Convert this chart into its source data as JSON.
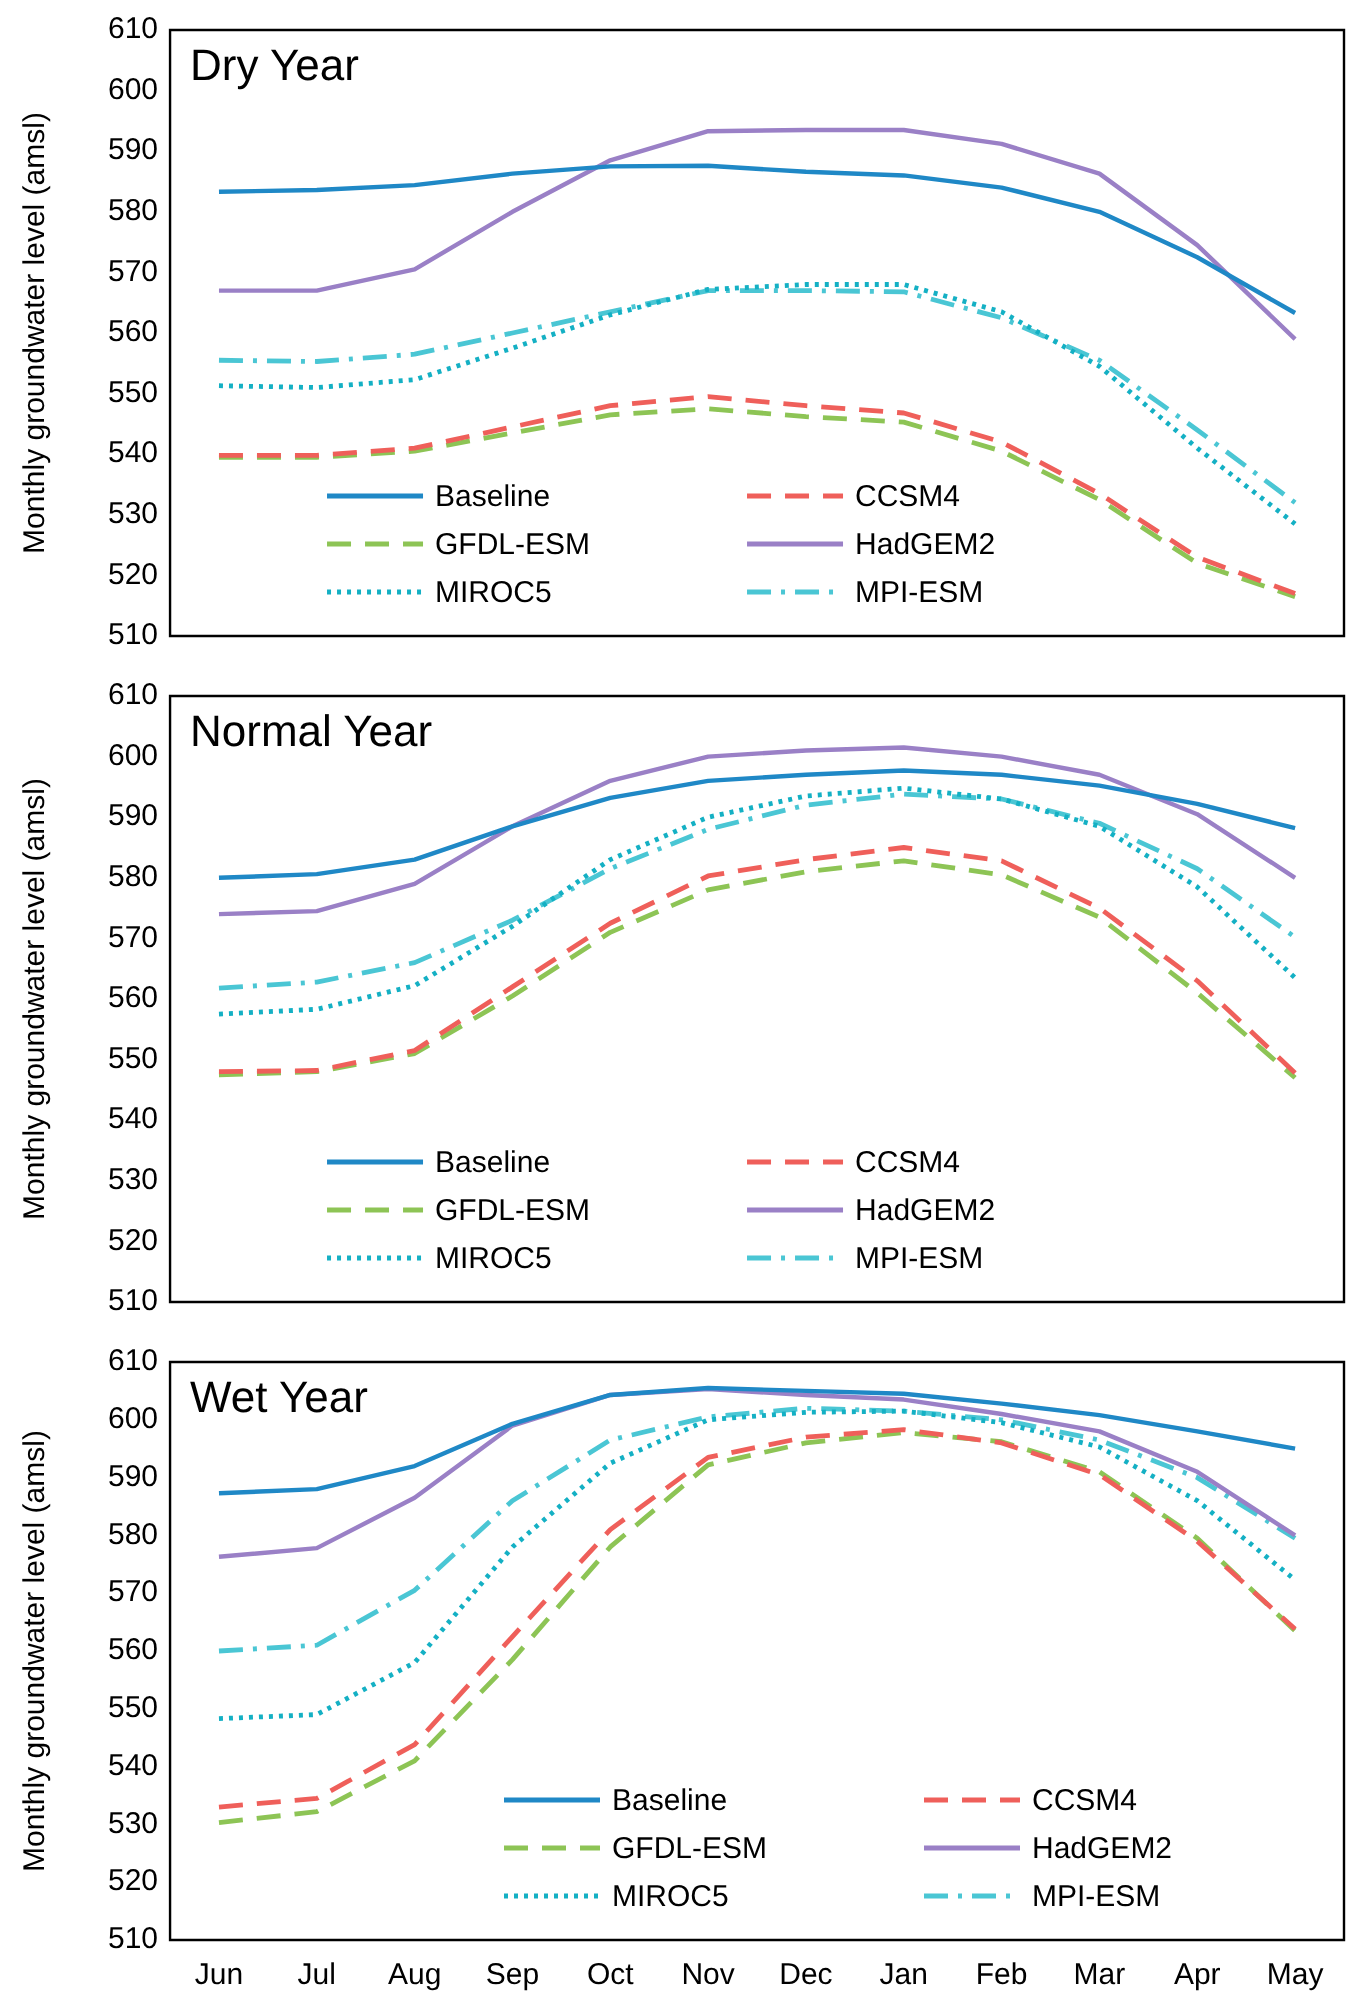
{
  "chart_data": [
    {
      "type": "line",
      "title": "Dry Year",
      "ylabel": "Monthly groundwater level (amsl)",
      "categories": [
        null,
        null,
        null,
        null,
        null,
        null,
        null,
        null,
        null,
        null,
        null,
        null
      ],
      "ylim": [
        510,
        610
      ],
      "yticks": [
        510,
        520,
        530,
        540,
        550,
        560,
        570,
        580,
        590,
        600,
        610
      ],
      "legend": "bottom",
      "tick_labels": "y",
      "marker": "none",
      "series": [
        {
          "name": "Baseline",
          "color": "#1f88c6",
          "line_style": "solid",
          "values": [
            583.3,
            583.6,
            584.4,
            586.3,
            587.5,
            587.6,
            586.6,
            586.0,
            584.0,
            580.0,
            572.5,
            563.3
          ]
        },
        {
          "name": "CCSM4",
          "color": "#ef5f5a",
          "line_style": "dashed",
          "values": [
            539.8,
            539.8,
            541,
            544.5,
            548,
            549.5,
            548,
            546.8,
            542,
            533.5,
            523,
            517
          ]
        },
        {
          "name": "GFDL-ESM",
          "color": "#8dc455",
          "line_style": "dashed",
          "values": [
            539.5,
            539.5,
            540.5,
            543.5,
            546.5,
            547.5,
            546.2,
            545.3,
            540.5,
            532.5,
            522,
            516.5
          ]
        },
        {
          "name": "HadGEM2",
          "color": "#9a80c6",
          "line_style": "solid",
          "values": [
            567,
            567,
            570.5,
            580,
            588.5,
            593.3,
            593.5,
            593.5,
            591.2,
            586.3,
            574.5,
            559
          ]
        },
        {
          "name": "MIROC5",
          "color": "#14b0c4",
          "line_style": "dotted",
          "values": [
            551.3,
            551,
            552.3,
            557.5,
            563,
            567.2,
            568,
            568,
            563.5,
            554.5,
            541,
            528.5
          ]
        },
        {
          "name": "MPI-ESM",
          "color": "#4ac6d4",
          "line_style": "dashdot",
          "values": [
            555.5,
            555.3,
            556.5,
            560,
            563.5,
            567,
            567,
            566.8,
            562.5,
            555.5,
            544,
            532
          ]
        }
      ]
    },
    {
      "type": "line",
      "title": "Normal Year",
      "ylabel": "Monthly groundwater level (amsl)",
      "categories": [
        null,
        null,
        null,
        null,
        null,
        null,
        null,
        null,
        null,
        null,
        null,
        null
      ],
      "ylim": [
        510,
        610
      ],
      "yticks": [
        510,
        520,
        530,
        540,
        550,
        560,
        570,
        580,
        590,
        600,
        610
      ],
      "legend": "bottom",
      "tick_labels": "y",
      "marker": "none",
      "series": [
        {
          "name": "Baseline",
          "color": "#1f88c6",
          "line_style": "solid",
          "values": [
            580,
            580.6,
            583,
            588.5,
            593.2,
            596,
            597,
            597.7,
            597,
            595.2,
            592.2,
            588.2
          ]
        },
        {
          "name": "CCSM4",
          "color": "#ef5f5a",
          "line_style": "dashed",
          "values": [
            548,
            548.2,
            551.5,
            562,
            572.5,
            580.3,
            583,
            585,
            582.8,
            575,
            563,
            547.8
          ]
        },
        {
          "name": "GFDL-ESM",
          "color": "#8dc455",
          "line_style": "dashed",
          "values": [
            547.5,
            548,
            551,
            560.5,
            571,
            578,
            581,
            582.8,
            580.5,
            573.5,
            561,
            547
          ]
        },
        {
          "name": "HadGEM2",
          "color": "#9a80c6",
          "line_style": "solid",
          "values": [
            574,
            574.5,
            579,
            588.5,
            596,
            600,
            601,
            601.5,
            600,
            597,
            590.5,
            580
          ]
        },
        {
          "name": "MIROC5",
          "color": "#14b0c4",
          "line_style": "dotted",
          "values": [
            557.5,
            558.3,
            562.2,
            572,
            583,
            590,
            593.5,
            594.8,
            593,
            588.5,
            578.5,
            563.5
          ]
        },
        {
          "name": "MPI-ESM",
          "color": "#4ac6d4",
          "line_style": "dashdot",
          "values": [
            561.8,
            562.8,
            566,
            573,
            581.5,
            588,
            592,
            593.8,
            593,
            589,
            581.5,
            570.2
          ]
        }
      ]
    },
    {
      "type": "line",
      "title": "Wet Year",
      "ylabel": "Monthly groundwater level (amsl)",
      "categories": [
        "Jun",
        "Jul",
        "Aug",
        "Sep",
        "Oct",
        "Nov",
        "Dec",
        "Jan",
        "Feb",
        "Mar",
        "Apr",
        "May"
      ],
      "ylim": [
        510,
        610
      ],
      "yticks": [
        510,
        520,
        530,
        540,
        550,
        560,
        570,
        580,
        590,
        600,
        610
      ],
      "legend": "bottom right",
      "marker": "none",
      "series": [
        {
          "name": "Baseline",
          "color": "#1f88c6",
          "line_style": "solid",
          "values": [
            587.3,
            588,
            592,
            599.3,
            604.3,
            605.5,
            605,
            604.5,
            602.8,
            600.8,
            598,
            595
          ]
        },
        {
          "name": "CCSM4",
          "color": "#ef5f5a",
          "line_style": "dashed",
          "values": [
            533,
            534.5,
            543.8,
            562.5,
            581,
            593.5,
            597,
            598.3,
            596,
            590.5,
            579,
            563.8
          ]
        },
        {
          "name": "GFDL-ESM",
          "color": "#8dc455",
          "line_style": "dashed",
          "values": [
            530.3,
            532.2,
            541,
            558.5,
            578,
            592.2,
            596,
            597.8,
            596.2,
            591,
            579.5,
            563.5
          ]
        },
        {
          "name": "HadGEM2",
          "color": "#9a80c6",
          "line_style": "solid",
          "values": [
            576.3,
            577.8,
            586.5,
            599,
            604.3,
            605.3,
            604.3,
            603.5,
            601,
            598,
            591,
            580
          ]
        },
        {
          "name": "MIROC5",
          "color": "#14b0c4",
          "line_style": "dotted",
          "values": [
            548.3,
            549,
            558,
            578,
            592.5,
            600,
            601.3,
            601.5,
            599.5,
            595.3,
            586,
            572.3
          ]
        },
        {
          "name": "MPI-ESM",
          "color": "#4ac6d4",
          "line_style": "dashdot",
          "values": [
            560,
            561,
            570.5,
            586,
            596.5,
            600.5,
            602,
            601.5,
            600,
            596.5,
            590,
            579.5
          ]
        }
      ]
    }
  ]
}
